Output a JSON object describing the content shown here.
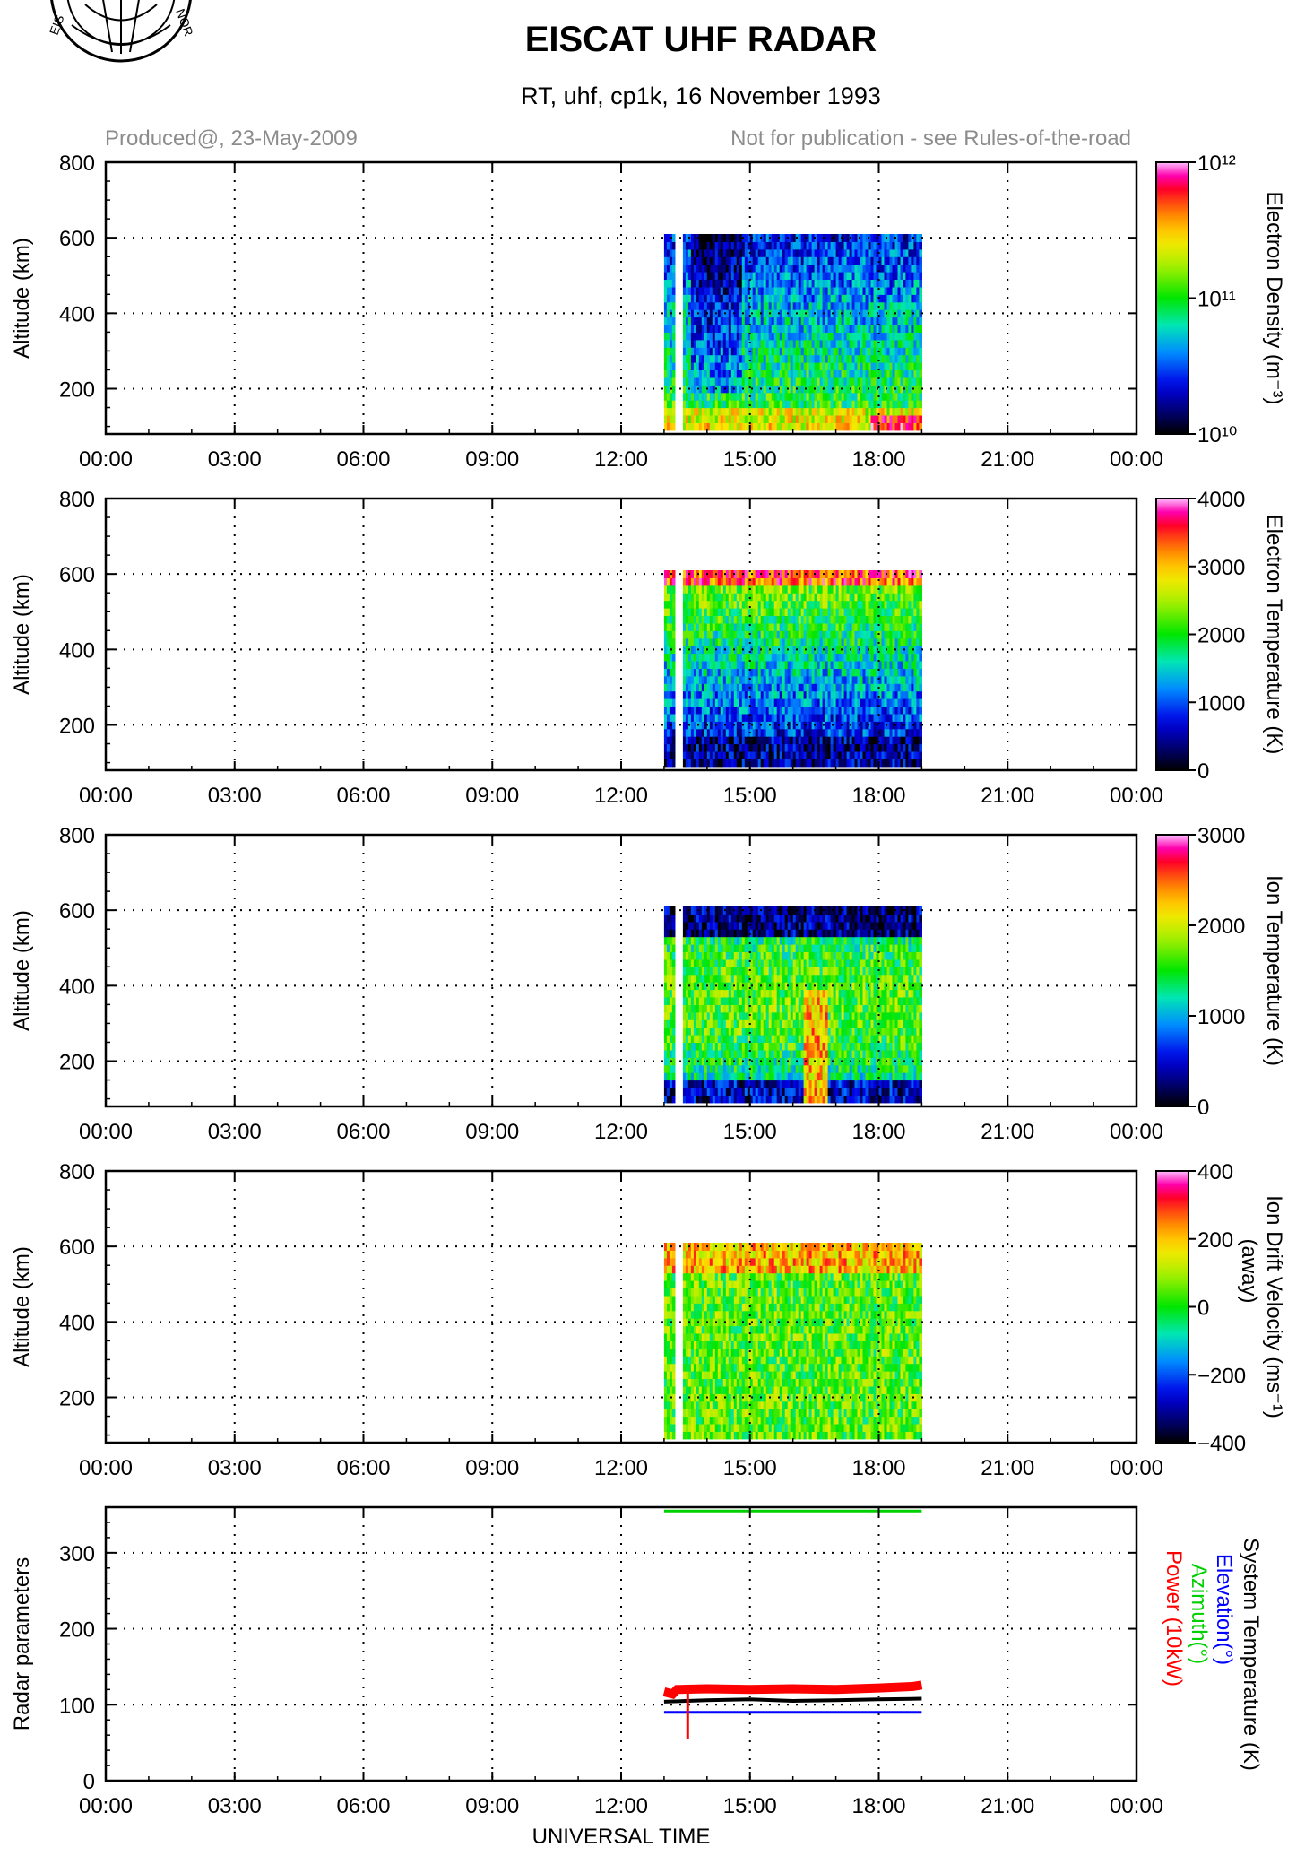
{
  "header": {
    "title": "EISCAT UHF RADAR",
    "subtitle": "RT, uhf, cp1k, 16 November 1993",
    "produced": "Produced@, 23-May-2009",
    "notice": "Not for publication - see Rules-of-the-road"
  },
  "chart_data": [
    {
      "type": "heatmap",
      "ylabel": "Altitude (km)",
      "colorbar_label": "Electron Density (m⁻³)",
      "colorbar_ticks": [
        "10¹⁰",
        "10¹¹",
        "10¹²"
      ],
      "colorbar_scale": "log",
      "clim": [
        10000000000,
        1000000000000
      ],
      "xlim_hours": [
        0,
        24
      ],
      "ylim": [
        80,
        800
      ],
      "yticks": [
        200,
        400,
        600,
        800
      ],
      "xticks": [
        "00:00",
        "03:00",
        "06:00",
        "09:00",
        "12:00",
        "15:00",
        "18:00",
        "21:00",
        "00:00"
      ],
      "grid": true,
      "data_window_hours": [
        13.0,
        19.0
      ],
      "data_altitude_km": [
        90,
        610
      ],
      "profile": "density"
    },
    {
      "type": "heatmap",
      "ylabel": "Altitude (km)",
      "colorbar_label": "Electron Temperature (K)",
      "colorbar_ticks": [
        "0",
        "1000",
        "2000",
        "3000",
        "4000"
      ],
      "clim": [
        0,
        4000
      ],
      "xlim_hours": [
        0,
        24
      ],
      "ylim": [
        80,
        800
      ],
      "yticks": [
        200,
        400,
        600,
        800
      ],
      "xticks": [
        "00:00",
        "03:00",
        "06:00",
        "09:00",
        "12:00",
        "15:00",
        "18:00",
        "21:00",
        "00:00"
      ],
      "grid": true,
      "data_window_hours": [
        13.0,
        19.0
      ],
      "data_altitude_km": [
        90,
        610
      ],
      "profile": "te"
    },
    {
      "type": "heatmap",
      "ylabel": "Altitude (km)",
      "colorbar_label": "Ion Temperature (K)",
      "colorbar_ticks": [
        "0",
        "1000",
        "2000",
        "3000"
      ],
      "clim": [
        0,
        3000
      ],
      "xlim_hours": [
        0,
        24
      ],
      "ylim": [
        80,
        800
      ],
      "yticks": [
        200,
        400,
        600,
        800
      ],
      "xticks": [
        "00:00",
        "03:00",
        "06:00",
        "09:00",
        "12:00",
        "15:00",
        "18:00",
        "21:00",
        "00:00"
      ],
      "grid": true,
      "data_window_hours": [
        13.0,
        19.0
      ],
      "data_altitude_km": [
        90,
        610
      ],
      "profile": "ti"
    },
    {
      "type": "heatmap",
      "ylabel": "Altitude (km)",
      "colorbar_label": "Ion Drift Velocity (ms⁻¹)",
      "colorbar_label2": "(away)",
      "colorbar_ticks": [
        "−400",
        "−200",
        "0",
        "200",
        "400"
      ],
      "clim": [
        -400,
        400
      ],
      "xlim_hours": [
        0,
        24
      ],
      "ylim": [
        80,
        800
      ],
      "yticks": [
        200,
        400,
        600,
        800
      ],
      "xticks": [
        "00:00",
        "03:00",
        "06:00",
        "09:00",
        "12:00",
        "15:00",
        "18:00",
        "21:00",
        "00:00"
      ],
      "grid": true,
      "data_window_hours": [
        13.0,
        19.0
      ],
      "data_altitude_km": [
        90,
        610
      ],
      "profile": "vi"
    },
    {
      "type": "line",
      "ylabel": "Radar parameters",
      "xlabel": "UNIVERSAL TIME",
      "xlim_hours": [
        0,
        24
      ],
      "ylim": [
        0,
        360
      ],
      "yticks": [
        0,
        100,
        200,
        300
      ],
      "xticks": [
        "00:00",
        "03:00",
        "06:00",
        "09:00",
        "12:00",
        "15:00",
        "18:00",
        "21:00",
        "00:00"
      ],
      "grid": true,
      "legend": [
        {
          "name": "System Temperature (K)",
          "color": "#000000"
        },
        {
          "name": "Elevation(°)",
          "color": "#0000ff"
        },
        {
          "name": "Azimuth(°)",
          "color": "#00d000"
        },
        {
          "name": "Power (10kW)",
          "color": "#ff0000"
        }
      ],
      "series": [
        {
          "name": "Azimuth(°)",
          "color": "#00d000",
          "x_hours": [
            13.0,
            19.0
          ],
          "values": [
            355,
            355
          ]
        },
        {
          "name": "Power (10kW)",
          "color": "#ff0000",
          "x_hours": [
            13.0,
            13.2,
            13.3,
            14.0,
            15.0,
            16.0,
            17.0,
            18.0,
            18.8,
            19.0
          ],
          "values": [
            117,
            114,
            120,
            121,
            120,
            121,
            120,
            122,
            124,
            126
          ]
        },
        {
          "name": "System Temperature (K)",
          "color": "#000000",
          "x_hours": [
            13.0,
            14.0,
            15.0,
            16.0,
            17.0,
            18.0,
            19.0
          ],
          "values": [
            104,
            106,
            107,
            105,
            106,
            107,
            108
          ]
        },
        {
          "name": "Elevation(°)",
          "color": "#0000ff",
          "x_hours": [
            13.0,
            19.0
          ],
          "values": [
            90,
            90
          ]
        }
      ],
      "spike": {
        "name": "Power (10kW)",
        "x_hours": 13.55,
        "values": [
          55,
          120
        ]
      }
    }
  ]
}
